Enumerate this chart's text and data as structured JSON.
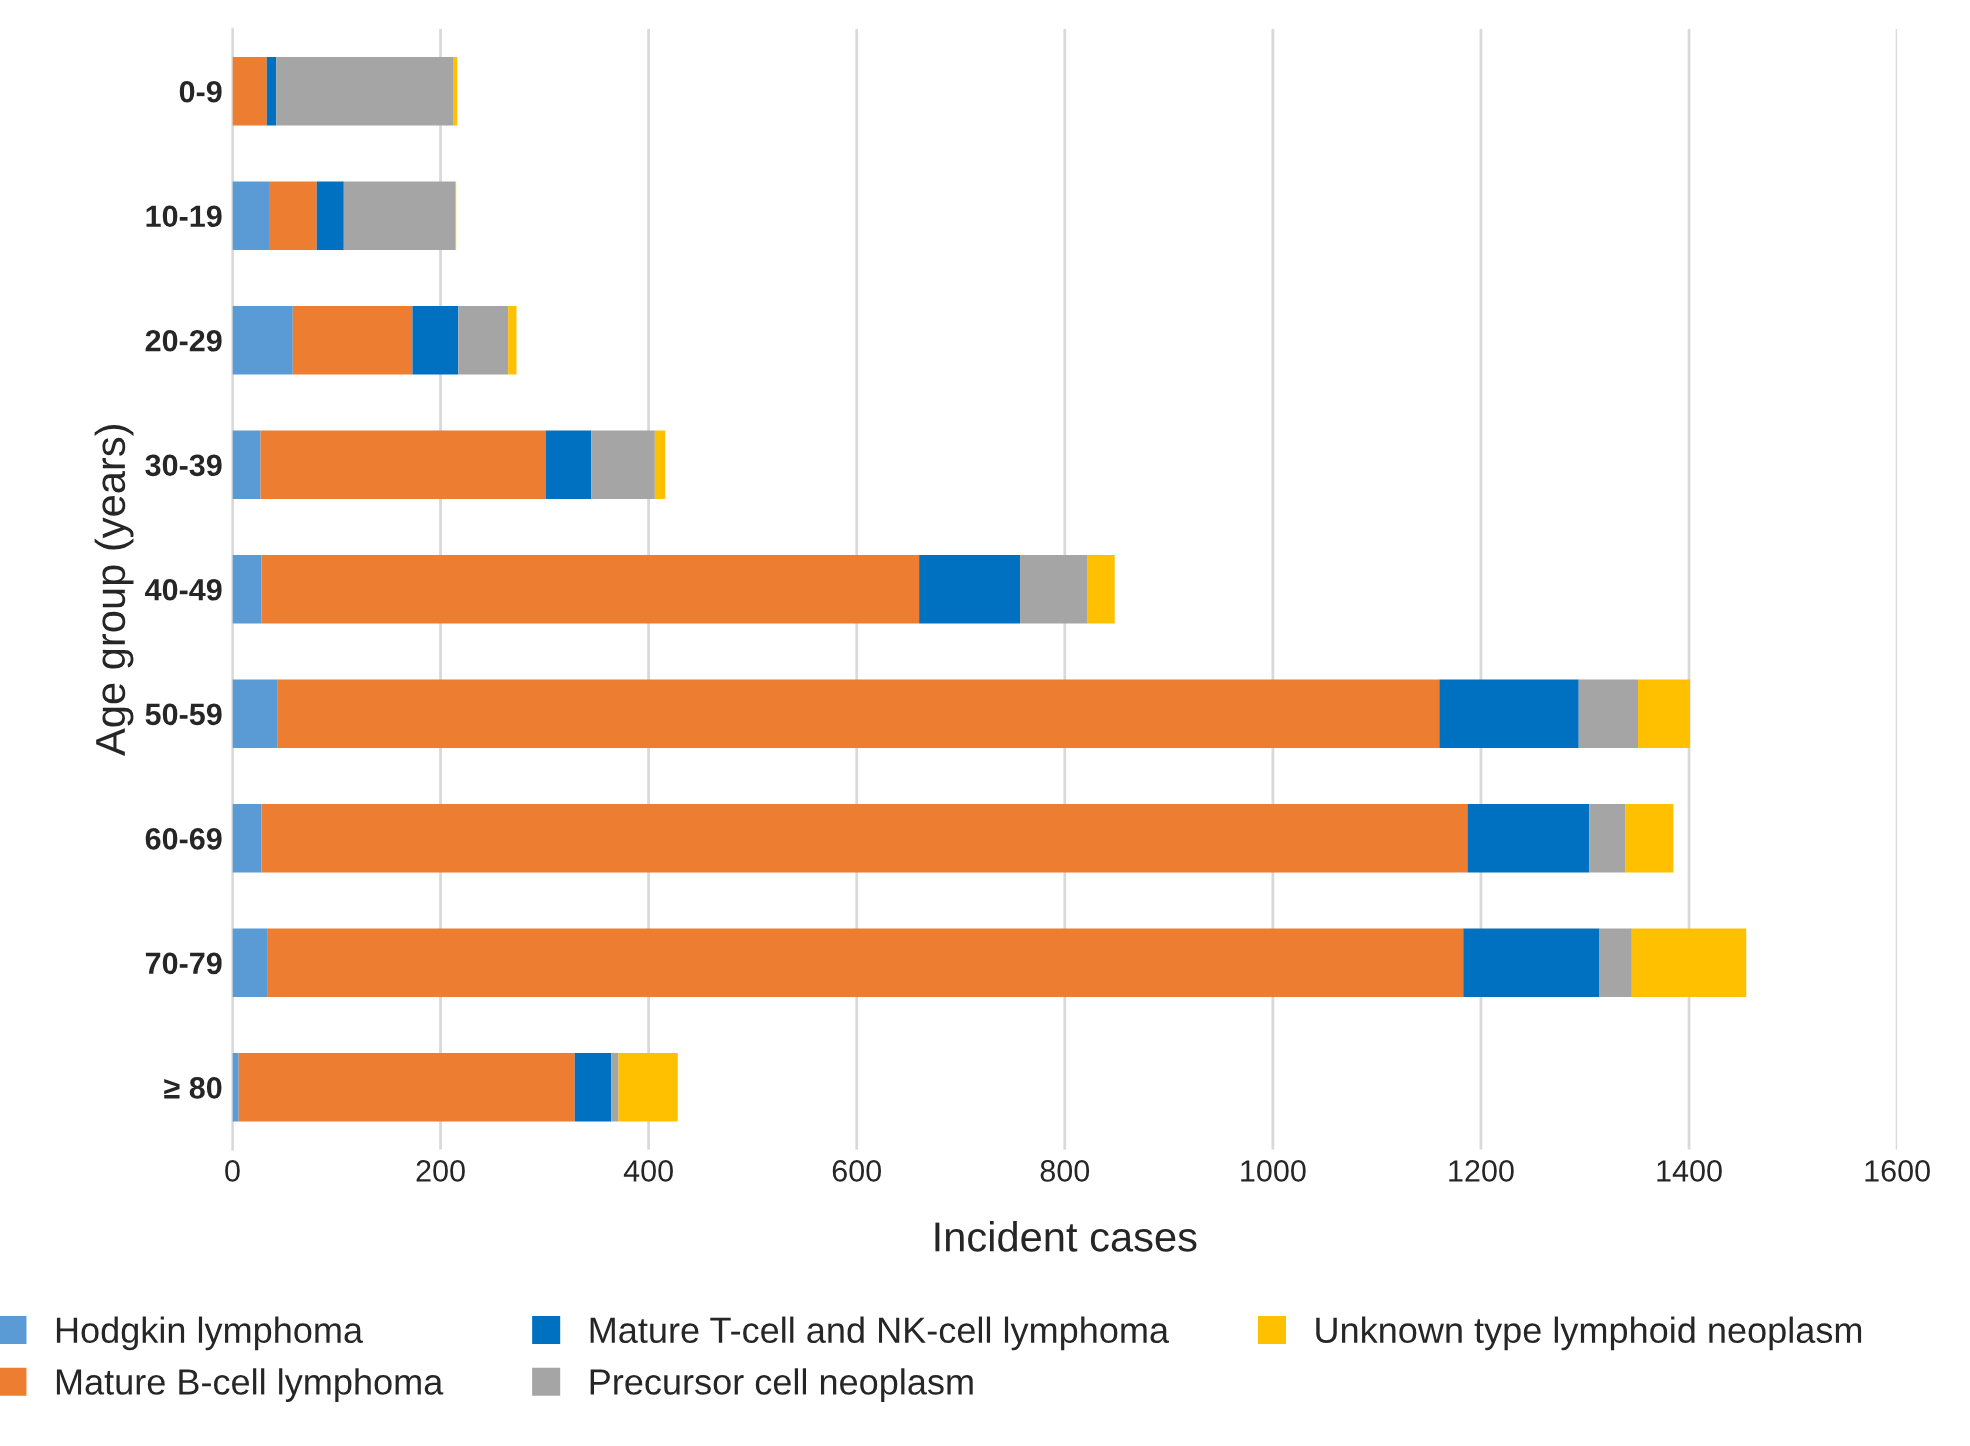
{
  "chart_data": {
    "type": "bar",
    "orientation": "horizontal",
    "stacked": true,
    "categories": [
      "0-9",
      "10-19",
      "20-29",
      "30-39",
      "40-49",
      "50-59",
      "60-69",
      "70-79",
      "≥ 80"
    ],
    "series": [
      {
        "name": "Hodgkin lymphoma",
        "color": "#5b9bd5",
        "values": [
          0,
          36,
          58,
          27,
          28,
          43,
          28,
          34,
          6
        ]
      },
      {
        "name": "Mature B-cell lymphoma",
        "color": "#ed7d31",
        "values": [
          33,
          45,
          115,
          274,
          632,
          1117,
          1159,
          1149,
          323
        ]
      },
      {
        "name": "Mature T-cell and NK-cell lymphoma",
        "color": "#0070c0",
        "values": [
          9,
          26,
          44,
          44,
          97,
          134,
          117,
          131,
          35
        ]
      },
      {
        "name": "Precursor cell neoplasm",
        "color": "#a5a5a5",
        "values": [
          170,
          107,
          48,
          61,
          65,
          57,
          35,
          31,
          7
        ]
      },
      {
        "name": "Unknown type lymphoid neoplasm",
        "color": "#ffc000",
        "values": [
          4,
          1,
          8,
          10,
          26,
          50,
          46,
          110,
          57
        ]
      }
    ],
    "xlabel": "Incident cases",
    "ylabel": "Age group (years)",
    "xlim": [
      0,
      1600
    ],
    "xticks": [
      0,
      200,
      400,
      600,
      800,
      1000,
      1200,
      1400,
      1600
    ],
    "grid": "x",
    "legend": "bottom"
  }
}
